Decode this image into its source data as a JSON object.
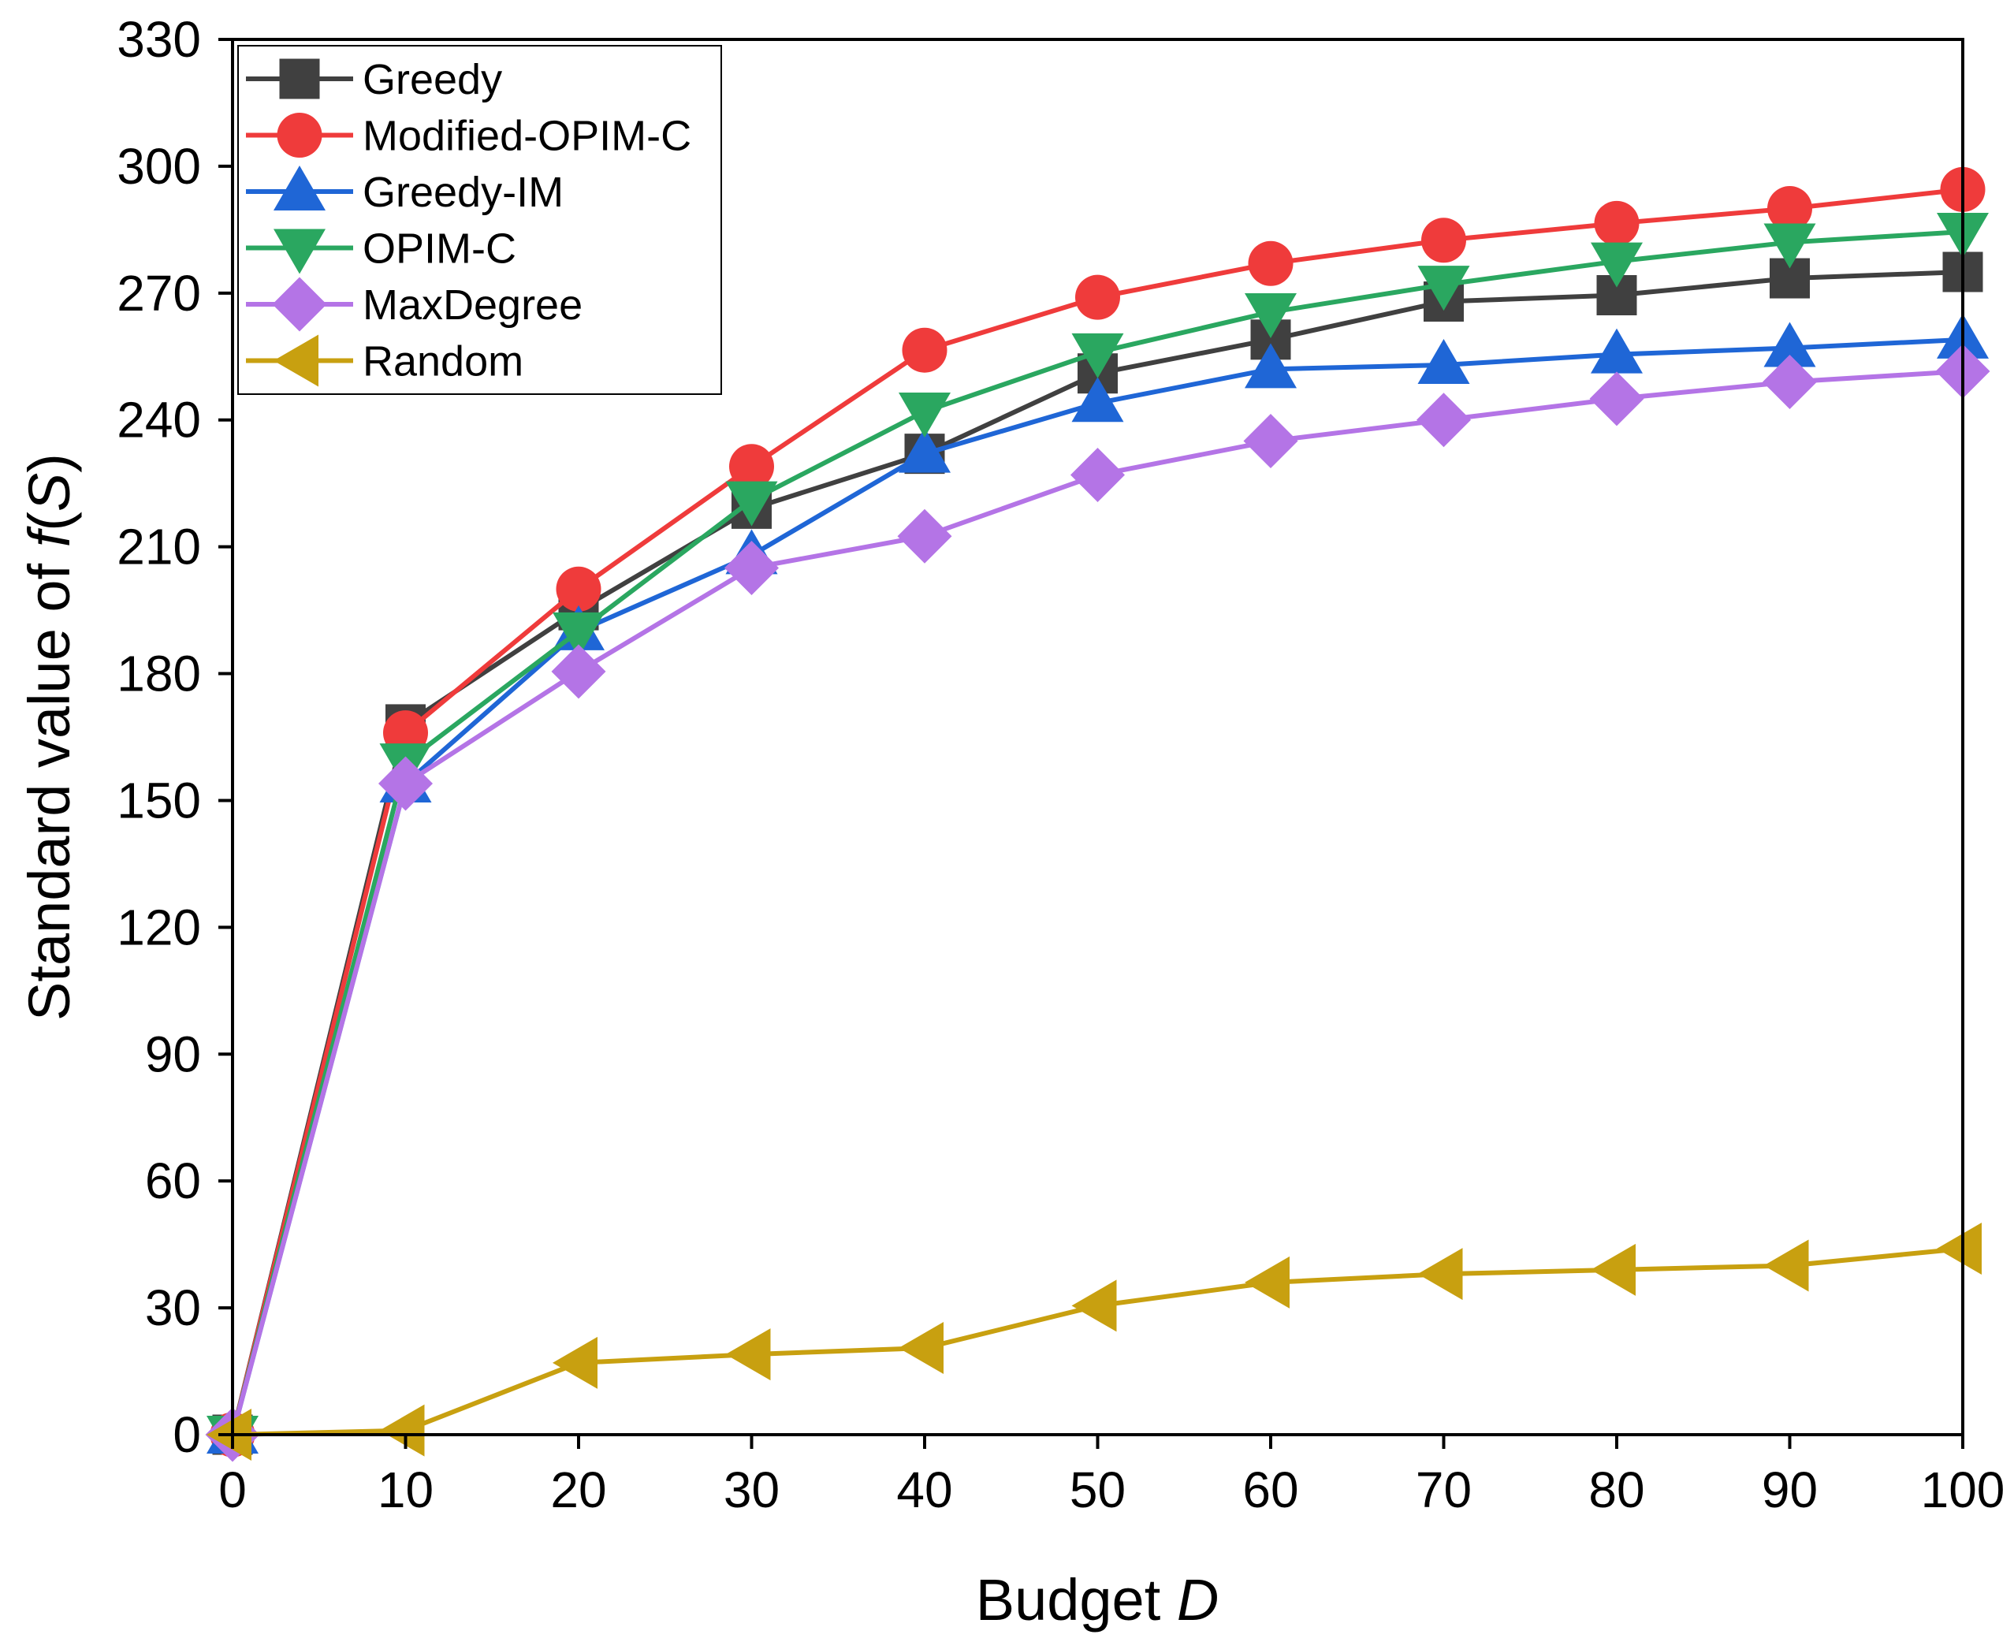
{
  "chart_data": {
    "type": "line",
    "x": [
      0,
      10,
      20,
      30,
      40,
      50,
      60,
      70,
      80,
      90,
      100
    ],
    "xlim": [
      0,
      100
    ],
    "ylim": [
      0,
      330
    ],
    "xticks": [
      "0",
      "10",
      "20",
      "30",
      "40",
      "50",
      "60",
      "70",
      "80",
      "90",
      "100"
    ],
    "yticks": [
      "0",
      "30",
      "60",
      "90",
      "120",
      "150",
      "180",
      "210",
      "240",
      "270",
      "300",
      "330"
    ],
    "xlabel_prefix": "Budget ",
    "xlabel_var": "D",
    "ylabel_prefix": "Standard value of ",
    "ylabel_f": "f",
    "ylabel_open": "(",
    "ylabel_var": "S",
    "ylabel_close": ")",
    "legend_position": "top-left",
    "grid": false,
    "series": [
      {
        "name": "Greedy",
        "color": "#404040",
        "marker": "square",
        "values": [
          0,
          168,
          195,
          219,
          232,
          251,
          259,
          268,
          269.5,
          273.5,
          275
        ]
      },
      {
        "name": "Modified-OPIM-C",
        "color": "#ef3b3b",
        "marker": "circle",
        "values": [
          0,
          166,
          200,
          229,
          256.5,
          269,
          277,
          282.5,
          286.5,
          290,
          294.5
        ]
      },
      {
        "name": "Greedy-IM",
        "color": "#1f66d6",
        "marker": "triangle-up",
        "values": [
          0,
          154,
          190,
          208,
          232,
          244,
          252,
          253,
          255.5,
          257,
          259
        ]
      },
      {
        "name": "OPIM-C",
        "color": "#2aa760",
        "marker": "triangle-down",
        "values": [
          0,
          159,
          190,
          221,
          242,
          256,
          265.5,
          272,
          277.5,
          282,
          284.5
        ]
      },
      {
        "name": "MaxDegree",
        "color": "#b474e6",
        "marker": "diamond",
        "values": [
          0,
          154,
          180.5,
          205,
          212.5,
          227,
          235,
          240,
          245,
          249,
          251.5
        ]
      },
      {
        "name": "Random",
        "color": "#c8a010",
        "marker": "triangle-left",
        "values": [
          0,
          1,
          17,
          19,
          20.5,
          30.5,
          36,
          38,
          39,
          40,
          44
        ]
      }
    ]
  }
}
